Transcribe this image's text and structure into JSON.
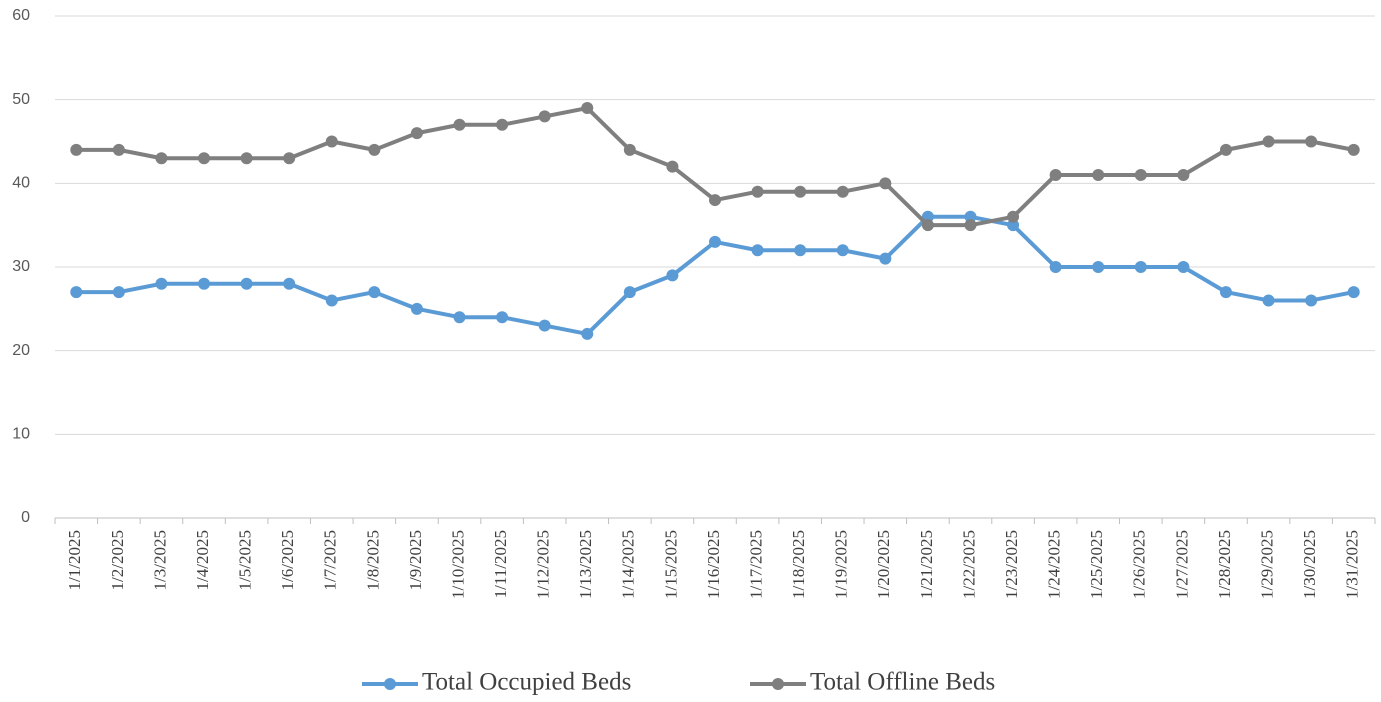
{
  "chart_data": {
    "type": "line",
    "categories": [
      "1/1/2025",
      "1/2/2025",
      "1/3/2025",
      "1/4/2025",
      "1/5/2025",
      "1/6/2025",
      "1/7/2025",
      "1/8/2025",
      "1/9/2025",
      "1/10/2025",
      "1/11/2025",
      "1/12/2025",
      "1/13/2025",
      "1/14/2025",
      "1/15/2025",
      "1/16/2025",
      "1/17/2025",
      "1/18/2025",
      "1/19/2025",
      "1/20/2025",
      "1/21/2025",
      "1/22/2025",
      "1/23/2025",
      "1/24/2025",
      "1/25/2025",
      "1/26/2025",
      "1/27/2025",
      "1/28/2025",
      "1/29/2025",
      "1/30/2025",
      "1/31/2025"
    ],
    "series": [
      {
        "name": "Total Occupied Beds",
        "color": "#5b9bd5",
        "values": [
          27,
          27,
          28,
          28,
          28,
          28,
          26,
          27,
          25,
          24,
          24,
          23,
          22,
          27,
          29,
          33,
          32,
          32,
          32,
          31,
          36,
          36,
          35,
          30,
          30,
          30,
          30,
          27,
          26,
          26,
          27
        ]
      },
      {
        "name": "Total Offline Beds",
        "color": "#7f7f7f",
        "values": [
          44,
          44,
          43,
          43,
          43,
          43,
          45,
          44,
          46,
          47,
          47,
          48,
          49,
          44,
          42,
          38,
          39,
          39,
          39,
          40,
          35,
          35,
          36,
          41,
          41,
          41,
          41,
          44,
          45,
          45,
          44
        ]
      }
    ],
    "ylim": [
      0,
      60
    ],
    "yticks": [
      0,
      10,
      20,
      30,
      40,
      50,
      60
    ],
    "grid": true,
    "legend": "bottom"
  }
}
